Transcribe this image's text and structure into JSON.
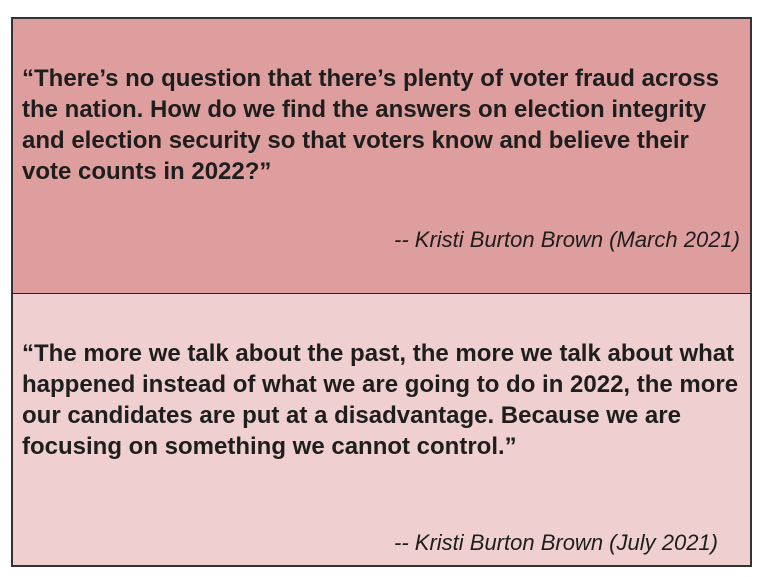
{
  "quotes": [
    {
      "text": "“There’s no question that there’s plenty of voter fraud across the nation. How do we find the answers on election integrity and election security so that voters know and believe their vote counts in 2022?”",
      "attribution": "-- Kristi Burton Brown (March 2021)",
      "background": "#dd9e9d"
    },
    {
      "text": "“The more we talk about the past, the more we talk about what happened instead of what we are going to do in 2022, the more our candidates are put at a disadvantage. Because we are focusing on something we cannot control.”",
      "attribution": "-- Kristi Burton Brown (July 2021)",
      "background": "#efcfd0"
    }
  ]
}
